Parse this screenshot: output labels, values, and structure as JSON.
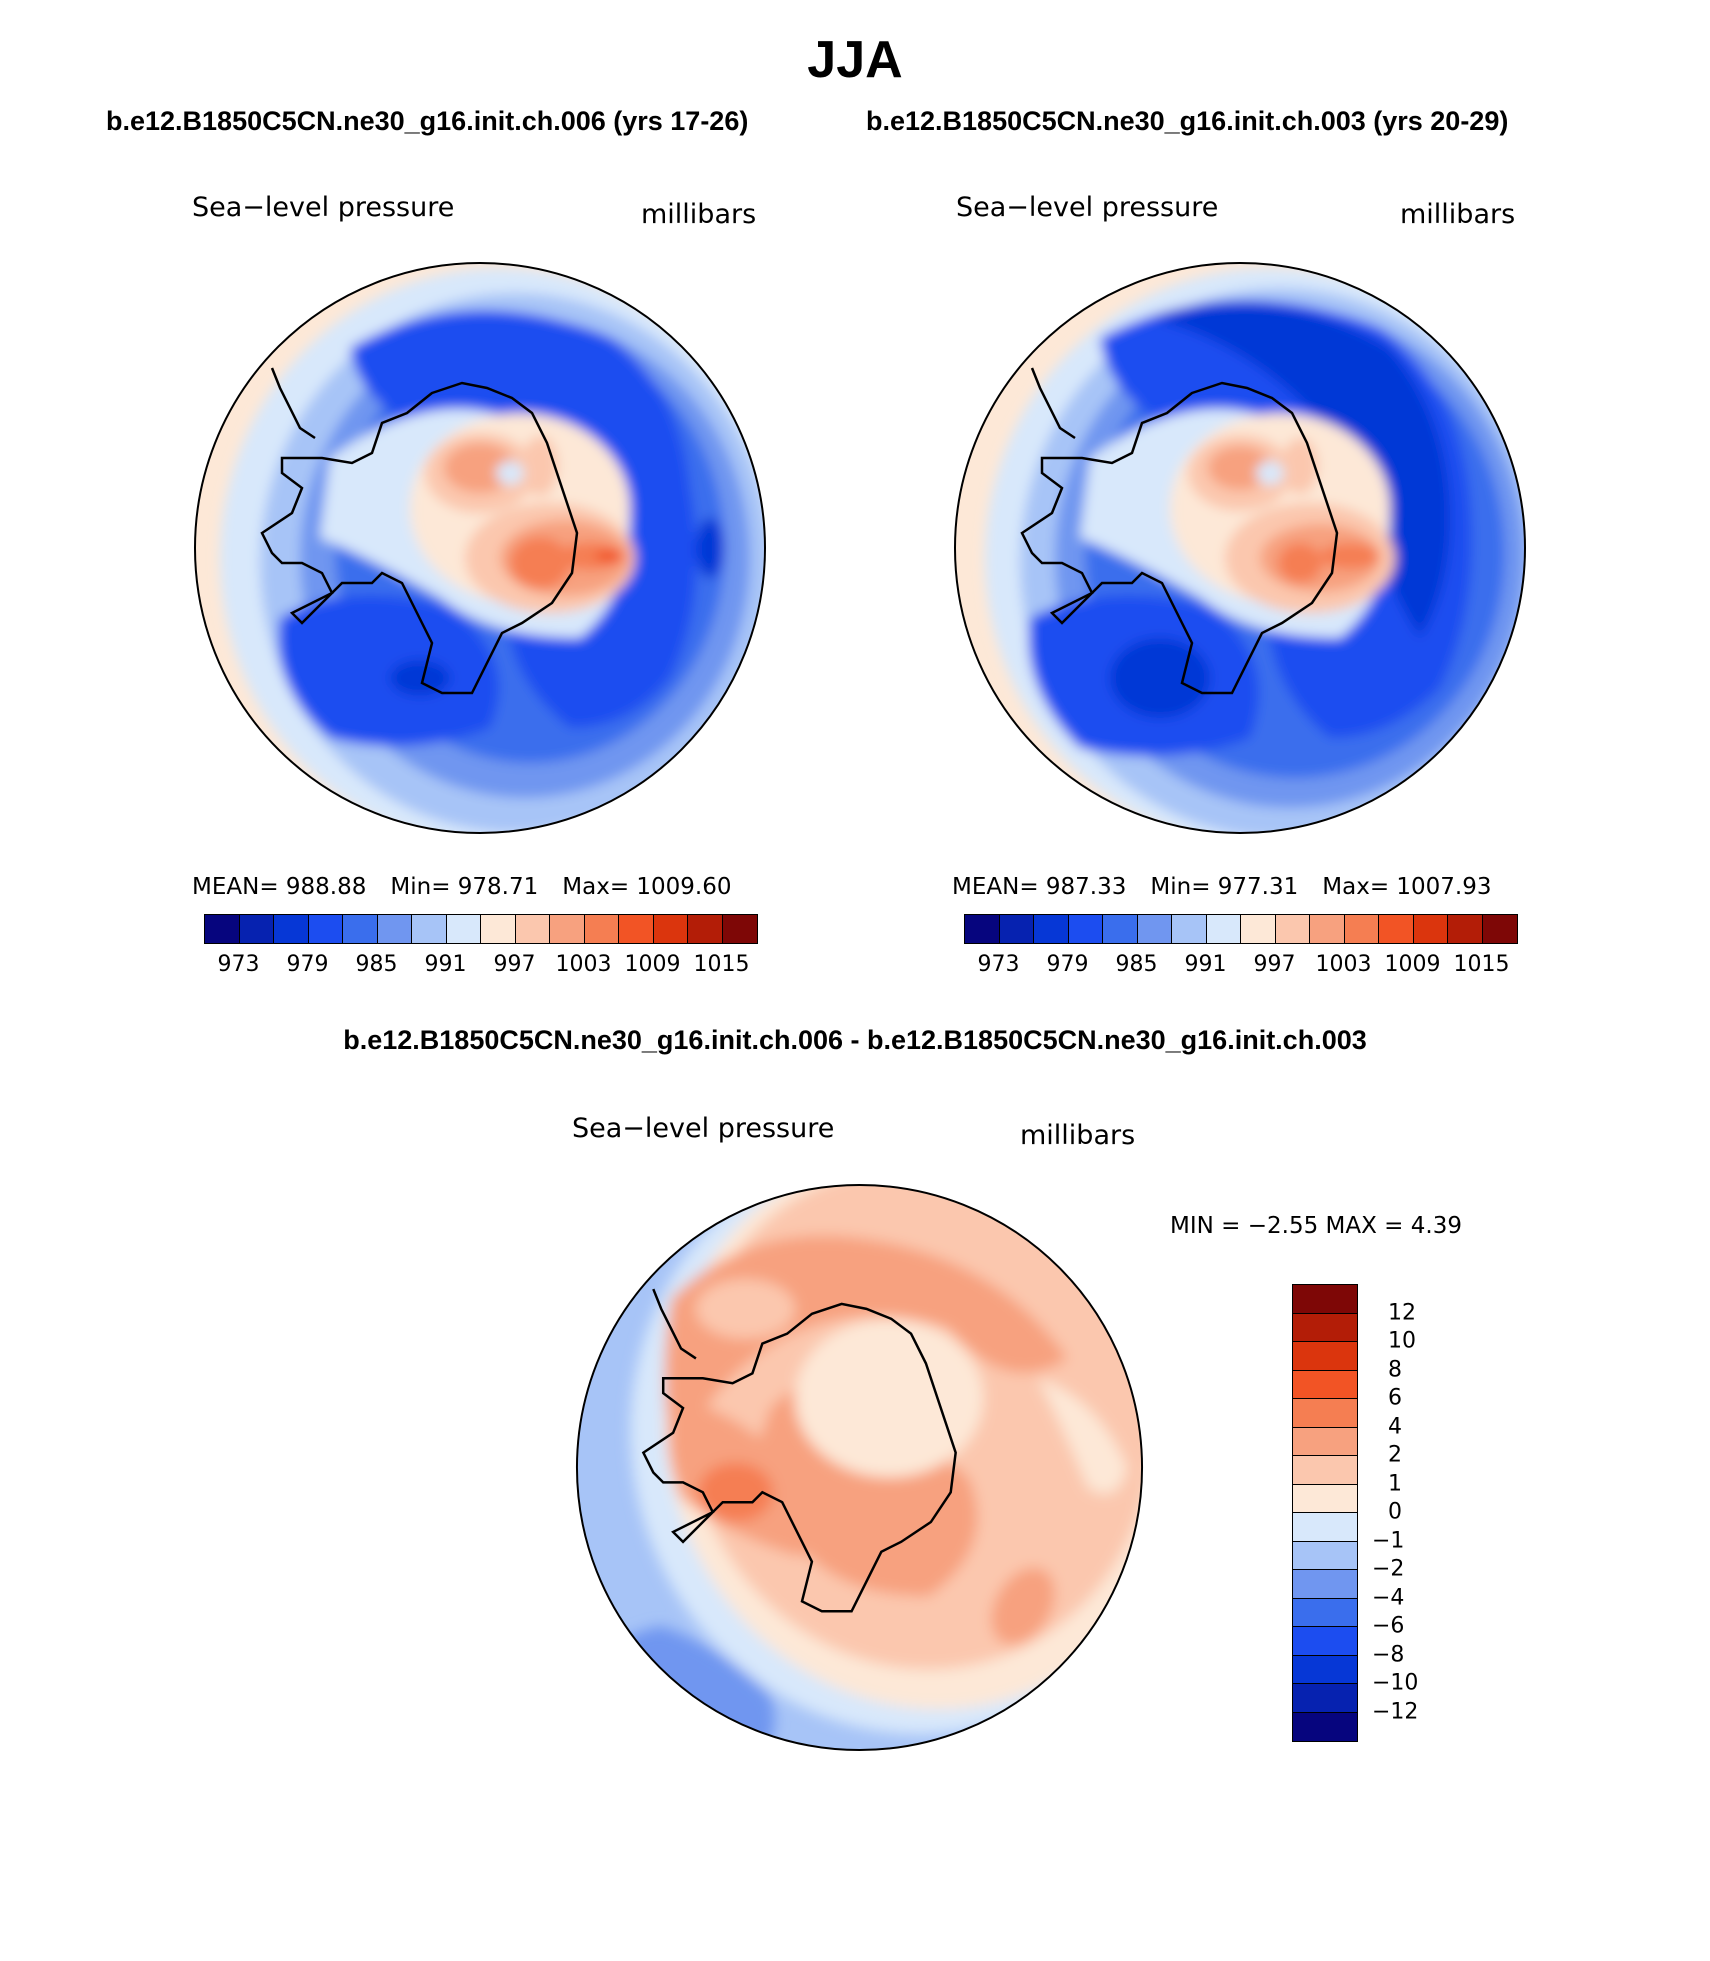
{
  "title": "JJA",
  "subtitle_left": "b.e12.B1850C5CN.ne30_g16.init.ch.006 (yrs 17-26)",
  "subtitle_right": "b.e12.B1850C5CN.ne30_g16.init.ch.003 (yrs 20-29)",
  "diff_title": "b.e12.B1850C5CN.ne30_g16.init.ch.006 - b.e12.B1850C5CN.ne30_g16.init.ch.003",
  "colors": {
    "abs": [
      "#06057e",
      "#0622b0",
      "#0637d6",
      "#1c4df0",
      "#3a6eed",
      "#7096f0",
      "#a7c4f7",
      "#d8e8fb",
      "#fde8d7",
      "#fbc7ae",
      "#f7a17f",
      "#f57e52",
      "#f25425",
      "#db350d",
      "#b31d07",
      "#7e0706"
    ],
    "diff": [
      "#06057e",
      "#0622b0",
      "#0637d6",
      "#1c4df0",
      "#3a6eed",
      "#7096f0",
      "#a7c4f7",
      "#d8e8fb",
      "#fde8d7",
      "#fbc7ae",
      "#f7a17f",
      "#f57e52",
      "#f25425",
      "#db350d",
      "#b31d07",
      "#7e0706"
    ]
  },
  "chart_data": [
    {
      "type": "contour",
      "panel": "left",
      "label_left": "Sea−level pressure",
      "label_right": "millibars",
      "stats": {
        "mean": "MEAN=  988.88",
        "min": "Min=  978.71",
        "max": "Max=  1009.60"
      },
      "colorbar_levels": [
        973,
        976,
        979,
        982,
        985,
        988,
        991,
        994,
        997,
        1000,
        1003,
        1006,
        1009,
        1012,
        1015
      ],
      "colorbar_tick_labels": [
        "973",
        "979",
        "985",
        "991",
        "997",
        "1003",
        "1009",
        "1015"
      ]
    },
    {
      "type": "contour",
      "panel": "right",
      "label_left": "Sea−level pressure",
      "label_right": "millibars",
      "stats": {
        "mean": "MEAN=  987.33",
        "min": "Min=  977.31",
        "max": "Max=  1007.93"
      },
      "colorbar_levels": [
        973,
        976,
        979,
        982,
        985,
        988,
        991,
        994,
        997,
        1000,
        1003,
        1006,
        1009,
        1012,
        1015
      ],
      "colorbar_tick_labels": [
        "973",
        "979",
        "985",
        "991",
        "997",
        "1003",
        "1009",
        "1015"
      ]
    },
    {
      "type": "contour",
      "panel": "difference",
      "label_left": "Sea−level pressure",
      "label_right": "millibars",
      "minmax_text": "MIN =    −2.55  MAX =     4.39",
      "min": -2.55,
      "max": 4.39,
      "colorbar_levels": [
        -12,
        -10,
        -8,
        -6,
        -4,
        -2,
        -1,
        0,
        1,
        2,
        4,
        6,
        8,
        10,
        12
      ],
      "colorbar_tick_labels": [
        "12",
        "10",
        "8",
        "6",
        "4",
        "2",
        "1",
        "0",
        "−1",
        "−2",
        "−4",
        "−6",
        "−8",
        "−10",
        "−12"
      ]
    }
  ]
}
